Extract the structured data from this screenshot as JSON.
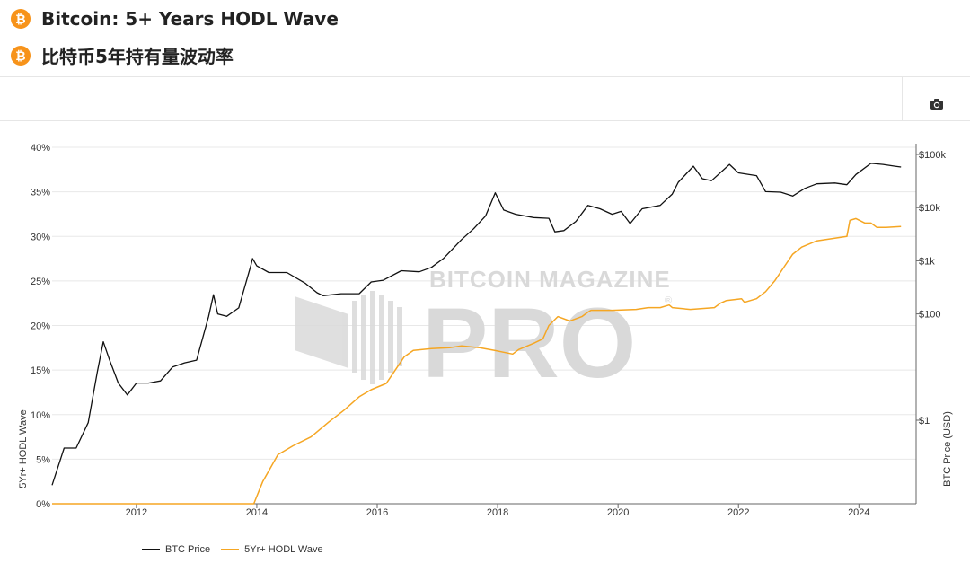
{
  "header": {
    "title_en": "Bitcoin: 5+ Years HODL Wave",
    "title_zh": "比特币5年持有量波动率",
    "coin_symbol": "₿"
  },
  "toolbar": {
    "camera_icon": "camera-icon"
  },
  "watermark": {
    "line1": "BITCOIN MAGAZINE",
    "line2": "PRO",
    "mark": "®"
  },
  "legend": [
    {
      "label": "BTC Price",
      "color": "#111111"
    },
    {
      "label": "5Yr+ HODL Wave",
      "color": "#f5a623"
    }
  ],
  "chart_data": {
    "type": "line",
    "title": "Bitcoin: 5+ Years HODL Wave",
    "xlabel": "",
    "ylabel_left": "5Yr+ HODL Wave",
    "ylabel_right": "BTC Price (USD)",
    "x_ticks": [
      "2012",
      "2014",
      "2016",
      "2018",
      "2020",
      "2022",
      "2024"
    ],
    "y_left_ticks": [
      "0%",
      "5%",
      "10%",
      "15%",
      "20%",
      "25%",
      "30%",
      "35%",
      "40%"
    ],
    "y_left_range": [
      0,
      40
    ],
    "y_right_ticks": [
      "$1",
      "$100",
      "$1k",
      "$10k",
      "$100k"
    ],
    "y_right_scale": "log",
    "grid": true,
    "series": [
      {
        "name": "BTC Price",
        "axis": "right",
        "color": "#111111",
        "points": [
          [
            2010.6,
            0.06
          ],
          [
            2010.8,
            0.3
          ],
          [
            2011.0,
            0.3
          ],
          [
            2011.2,
            0.9
          ],
          [
            2011.35,
            8
          ],
          [
            2011.45,
            30
          ],
          [
            2011.55,
            14
          ],
          [
            2011.7,
            5
          ],
          [
            2011.85,
            3
          ],
          [
            2012.0,
            5
          ],
          [
            2012.2,
            5
          ],
          [
            2012.4,
            5.5
          ],
          [
            2012.6,
            10
          ],
          [
            2012.8,
            12
          ],
          [
            2013.0,
            13.5
          ],
          [
            2013.2,
            90
          ],
          [
            2013.28,
            230
          ],
          [
            2013.35,
            100
          ],
          [
            2013.5,
            90
          ],
          [
            2013.7,
            130
          ],
          [
            2013.9,
            800
          ],
          [
            2013.93,
            1100
          ],
          [
            2014.0,
            800
          ],
          [
            2014.2,
            600
          ],
          [
            2014.5,
            600
          ],
          [
            2014.8,
            380
          ],
          [
            2015.0,
            250
          ],
          [
            2015.1,
            220
          ],
          [
            2015.4,
            240
          ],
          [
            2015.7,
            240
          ],
          [
            2015.9,
            400
          ],
          [
            2016.1,
            430
          ],
          [
            2016.4,
            650
          ],
          [
            2016.7,
            620
          ],
          [
            2016.9,
            750
          ],
          [
            2017.1,
            1100
          ],
          [
            2017.4,
            2500
          ],
          [
            2017.6,
            4000
          ],
          [
            2017.8,
            7000
          ],
          [
            2017.96,
            19000
          ],
          [
            2018.1,
            9000
          ],
          [
            2018.3,
            7500
          ],
          [
            2018.6,
            6500
          ],
          [
            2018.85,
            6300
          ],
          [
            2018.95,
            3500
          ],
          [
            2019.1,
            3700
          ],
          [
            2019.3,
            5500
          ],
          [
            2019.5,
            11000
          ],
          [
            2019.7,
            9500
          ],
          [
            2019.9,
            7500
          ],
          [
            2020.05,
            8500
          ],
          [
            2020.2,
            5000
          ],
          [
            2020.4,
            9500
          ],
          [
            2020.7,
            11000
          ],
          [
            2020.9,
            18000
          ],
          [
            2021.0,
            30000
          ],
          [
            2021.25,
            60000
          ],
          [
            2021.4,
            35000
          ],
          [
            2021.55,
            32000
          ],
          [
            2021.85,
            65000
          ],
          [
            2022.0,
            45000
          ],
          [
            2022.3,
            40000
          ],
          [
            2022.45,
            20000
          ],
          [
            2022.7,
            19500
          ],
          [
            2022.9,
            16500
          ],
          [
            2023.1,
            23000
          ],
          [
            2023.3,
            28000
          ],
          [
            2023.6,
            29000
          ],
          [
            2023.8,
            27000
          ],
          [
            2023.95,
            42000
          ],
          [
            2024.2,
            68000
          ],
          [
            2024.4,
            65000
          ],
          [
            2024.6,
            60000
          ],
          [
            2024.7,
            58000
          ]
        ]
      },
      {
        "name": "5Yr+ HODL Wave",
        "axis": "left",
        "color": "#f5a623",
        "points": [
          [
            2010.6,
            0
          ],
          [
            2013.95,
            0
          ],
          [
            2014.1,
            2.5
          ],
          [
            2014.35,
            5.5
          ],
          [
            2014.6,
            6.5
          ],
          [
            2014.9,
            7.5
          ],
          [
            2015.2,
            9.2
          ],
          [
            2015.45,
            10.5
          ],
          [
            2015.7,
            12
          ],
          [
            2015.9,
            12.8
          ],
          [
            2016.15,
            13.5
          ],
          [
            2016.25,
            14.5
          ],
          [
            2016.45,
            16.5
          ],
          [
            2016.6,
            17.2
          ],
          [
            2016.9,
            17.4
          ],
          [
            2017.2,
            17.5
          ],
          [
            2017.4,
            17.7
          ],
          [
            2017.7,
            17.5
          ],
          [
            2017.95,
            17.2
          ],
          [
            2018.1,
            17.0
          ],
          [
            2018.25,
            16.8
          ],
          [
            2018.35,
            17.3
          ],
          [
            2018.6,
            18.0
          ],
          [
            2018.75,
            18.5
          ],
          [
            2018.85,
            20.0
          ],
          [
            2019.0,
            21.0
          ],
          [
            2019.2,
            20.5
          ],
          [
            2019.4,
            21.0
          ],
          [
            2019.5,
            21.5
          ],
          [
            2019.55,
            21.7
          ],
          [
            2019.9,
            21.7
          ],
          [
            2020.3,
            21.8
          ],
          [
            2020.5,
            22.0
          ],
          [
            2020.7,
            22.0
          ],
          [
            2020.85,
            22.3
          ],
          [
            2020.9,
            22.0
          ],
          [
            2021.2,
            21.8
          ],
          [
            2021.6,
            22.0
          ],
          [
            2021.7,
            22.5
          ],
          [
            2021.8,
            22.8
          ],
          [
            2022.05,
            23.0
          ],
          [
            2022.1,
            22.6
          ],
          [
            2022.3,
            23.0
          ],
          [
            2022.45,
            23.8
          ],
          [
            2022.6,
            25.0
          ],
          [
            2022.75,
            26.5
          ],
          [
            2022.9,
            28.0
          ],
          [
            2023.05,
            28.8
          ],
          [
            2023.3,
            29.5
          ],
          [
            2023.6,
            29.8
          ],
          [
            2023.8,
            30.0
          ],
          [
            2023.85,
            31.8
          ],
          [
            2023.95,
            32.0
          ],
          [
            2024.1,
            31.5
          ],
          [
            2024.2,
            31.5
          ],
          [
            2024.3,
            31.0
          ],
          [
            2024.45,
            31.0
          ],
          [
            2024.7,
            31.1
          ]
        ]
      }
    ]
  }
}
